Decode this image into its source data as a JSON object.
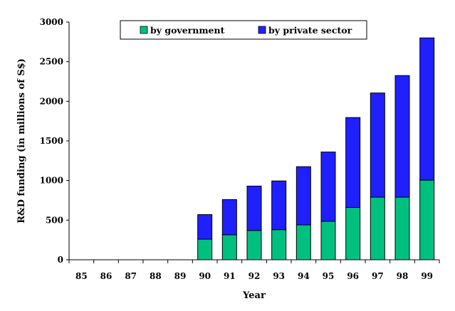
{
  "chart_data": {
    "type": "bar",
    "stacked": true,
    "categories": [
      "85",
      "86",
      "87",
      "88",
      "89",
      "90",
      "91",
      "92",
      "93",
      "94",
      "95",
      "96",
      "97",
      "98",
      "99"
    ],
    "series": [
      {
        "name": "by government",
        "color": "#00c080",
        "values": [
          0,
          0,
          0,
          0,
          0,
          260,
          315,
          370,
          380,
          440,
          485,
          660,
          790,
          790,
          1005
        ]
      },
      {
        "name": "by private sector",
        "color": "#2020ff",
        "values": [
          0,
          0,
          0,
          0,
          0,
          310,
          445,
          560,
          615,
          735,
          875,
          1135,
          1315,
          1535,
          1795
        ]
      }
    ],
    "xlabel": "Year",
    "ylabel": "R&D funding (in millions of S$)",
    "ylim": [
      0,
      3000
    ],
    "yticks": [
      0,
      500,
      1000,
      1500,
      2000,
      2500,
      3000
    ],
    "grid": false,
    "legend_position": "top"
  }
}
